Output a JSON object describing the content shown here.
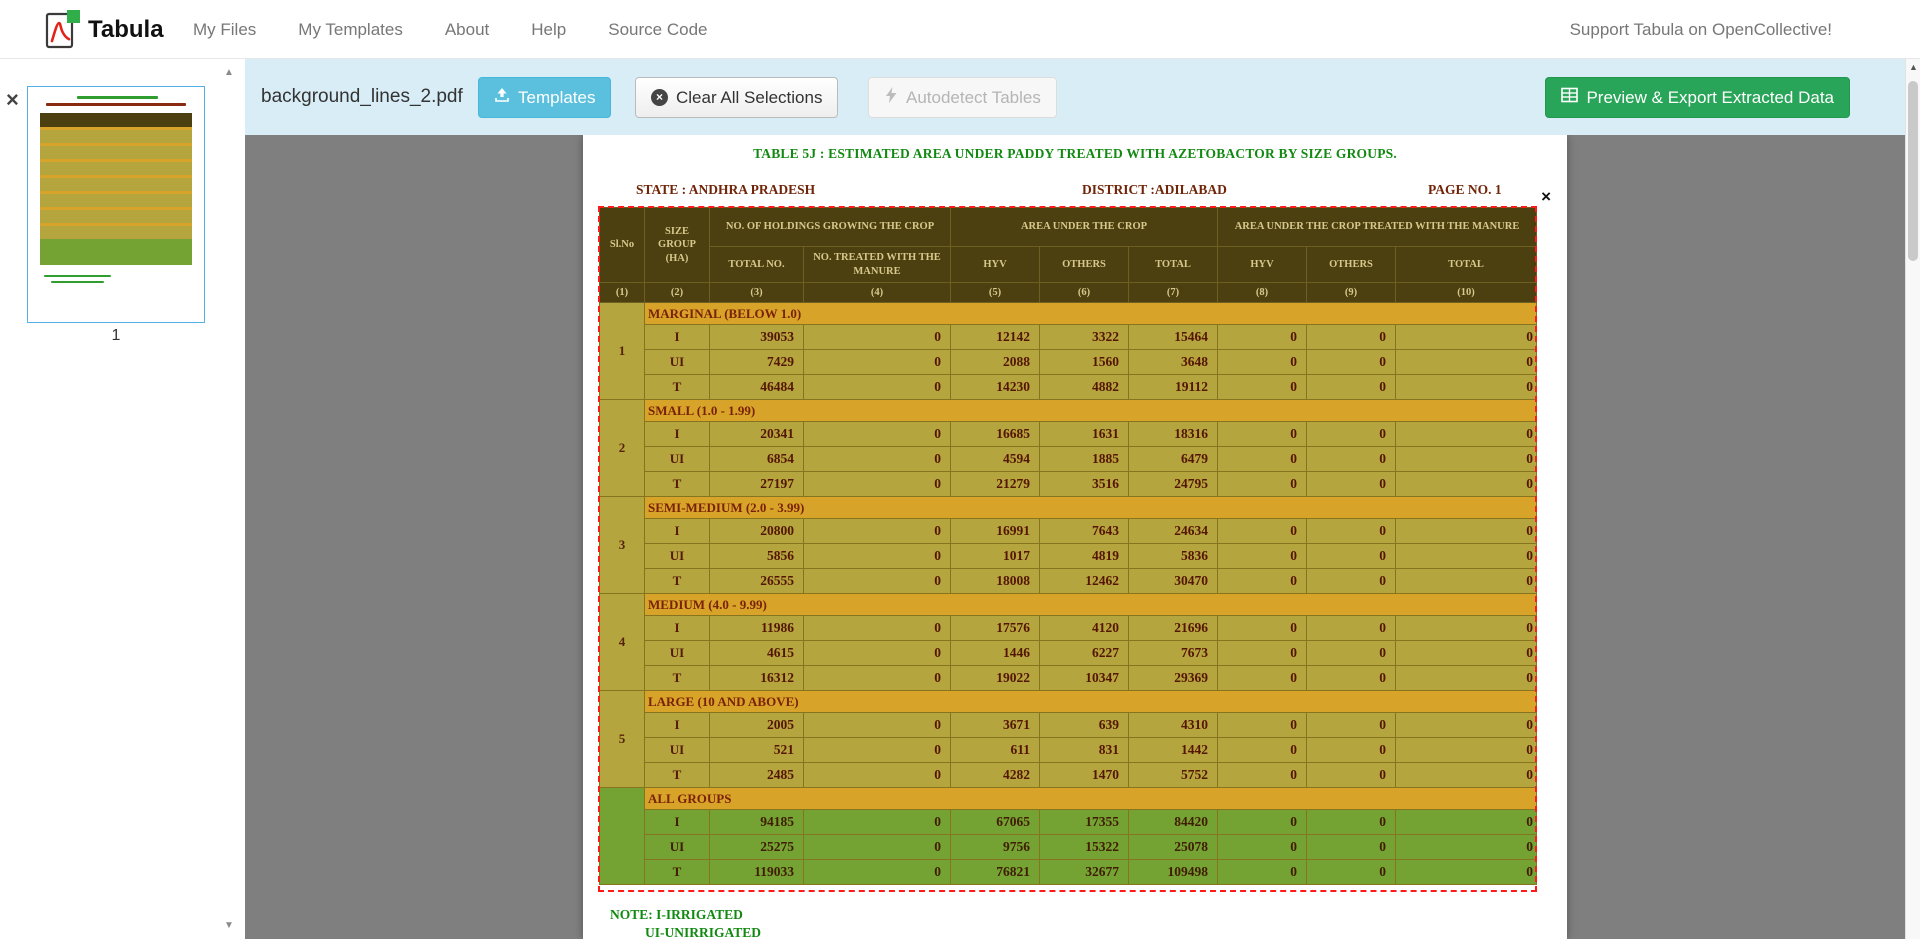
{
  "navbar": {
    "brand": "Tabula",
    "items": [
      "My Files",
      "My Templates",
      "About",
      "Help",
      "Source Code"
    ],
    "support": "Support Tabula on OpenCollective!"
  },
  "toolbar": {
    "filename": "background_lines_2.pdf",
    "templates": "Templates",
    "clear": "Clear All Selections",
    "autodetect": "Autodetect Tables",
    "export": "Preview & Export Extracted Data"
  },
  "sidebar": {
    "page_number": "1",
    "remove": "×"
  },
  "scroll": {
    "up": "▲",
    "down": "▼"
  },
  "icons": {
    "clear_x": "×"
  },
  "document": {
    "title": "TABLE 5J : ESTIMATED AREA UNDER PADDY  TREATED WITH AZETOBACTOR BY SIZE GROUPS.",
    "meta": {
      "state": "STATE : ANDHRA PRADESH",
      "district": "DISTRICT :ADILABAD",
      "page": "PAGE NO. 1"
    },
    "selection_close": "×",
    "notes": [
      "NOTE: I-IRRIGATED",
      "UI-UNIRRIGATED"
    ],
    "table": {
      "header": {
        "col1": "Sl.No",
        "col2": "SIZE GROUP (HA)",
        "group1": "NO. OF HOLDINGS GROWING THE CROP",
        "group2": "AREA UNDER THE CROP",
        "group3": "AREA UNDER THE CROP TREATED WITH THE MANURE",
        "sub": [
          "TOTAL NO.",
          "NO. TREATED WITH THE MANURE",
          "HYV",
          "OTHERS",
          "TOTAL",
          "HYV",
          "OTHERS",
          "TOTAL"
        ],
        "numbers": [
          "(1)",
          "(2)",
          "(3)",
          "(4)",
          "(5)",
          "(6)",
          "(7)",
          "(8)",
          "(9)",
          "(10)"
        ]
      },
      "groups": [
        {
          "slno": "1",
          "name": "MARGINAL (BELOW 1.0)",
          "color": "yellow",
          "rows": [
            {
              "label": "I",
              "values": [
                "39053",
                "0",
                "12142",
                "3322",
                "15464",
                "0",
                "0",
                "0"
              ]
            },
            {
              "label": "UI",
              "values": [
                "7429",
                "0",
                "2088",
                "1560",
                "3648",
                "0",
                "0",
                "0"
              ]
            },
            {
              "label": "T",
              "values": [
                "46484",
                "0",
                "14230",
                "4882",
                "19112",
                "0",
                "0",
                "0"
              ]
            }
          ]
        },
        {
          "slno": "2",
          "name": "SMALL (1.0 - 1.99)",
          "color": "yellow",
          "rows": [
            {
              "label": "I",
              "values": [
                "20341",
                "0",
                "16685",
                "1631",
                "18316",
                "0",
                "0",
                "0"
              ]
            },
            {
              "label": "UI",
              "values": [
                "6854",
                "0",
                "4594",
                "1885",
                "6479",
                "0",
                "0",
                "0"
              ]
            },
            {
              "label": "T",
              "values": [
                "27197",
                "0",
                "21279",
                "3516",
                "24795",
                "0",
                "0",
                "0"
              ]
            }
          ]
        },
        {
          "slno": "3",
          "name": "SEMI-MEDIUM (2.0 - 3.99)",
          "color": "yellow",
          "rows": [
            {
              "label": "I",
              "values": [
                "20800",
                "0",
                "16991",
                "7643",
                "24634",
                "0",
                "0",
                "0"
              ]
            },
            {
              "label": "UI",
              "values": [
                "5856",
                "0",
                "1017",
                "4819",
                "5836",
                "0",
                "0",
                "0"
              ]
            },
            {
              "label": "T",
              "values": [
                "26555",
                "0",
                "18008",
                "12462",
                "30470",
                "0",
                "0",
                "0"
              ]
            }
          ]
        },
        {
          "slno": "4",
          "name": "MEDIUM (4.0 - 9.99)",
          "color": "yellow",
          "rows": [
            {
              "label": "I",
              "values": [
                "11986",
                "0",
                "17576",
                "4120",
                "21696",
                "0",
                "0",
                "0"
              ]
            },
            {
              "label": "UI",
              "values": [
                "4615",
                "0",
                "1446",
                "6227",
                "7673",
                "0",
                "0",
                "0"
              ]
            },
            {
              "label": "T",
              "values": [
                "16312",
                "0",
                "19022",
                "10347",
                "29369",
                "0",
                "0",
                "0"
              ]
            }
          ]
        },
        {
          "slno": "5",
          "name": "LARGE (10 AND ABOVE)",
          "color": "yellow",
          "rows": [
            {
              "label": "I",
              "values": [
                "2005",
                "0",
                "3671",
                "639",
                "4310",
                "0",
                "0",
                "0"
              ]
            },
            {
              "label": "UI",
              "values": [
                "521",
                "0",
                "611",
                "831",
                "1442",
                "0",
                "0",
                "0"
              ]
            },
            {
              "label": "T",
              "values": [
                "2485",
                "0",
                "4282",
                "1470",
                "5752",
                "0",
                "0",
                "0"
              ]
            }
          ]
        },
        {
          "slno": "",
          "name": "ALL GROUPS",
          "color": "green",
          "rows": [
            {
              "label": "I",
              "values": [
                "94185",
                "0",
                "67065",
                "17355",
                "84420",
                "0",
                "0",
                "0"
              ]
            },
            {
              "label": "UI",
              "values": [
                "25275",
                "0",
                "9756",
                "15322",
                "25078",
                "0",
                "0",
                "0"
              ]
            },
            {
              "label": "T",
              "values": [
                "119033",
                "0",
                "76821",
                "32677",
                "109498",
                "0",
                "0",
                "0"
              ]
            }
          ]
        }
      ]
    }
  }
}
